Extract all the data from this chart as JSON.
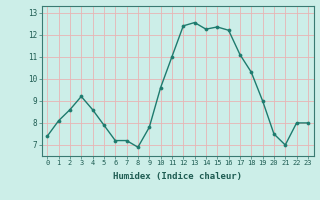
{
  "x": [
    0,
    1,
    2,
    3,
    4,
    5,
    6,
    7,
    8,
    9,
    10,
    11,
    12,
    13,
    14,
    15,
    16,
    17,
    18,
    19,
    20,
    21,
    22,
    23
  ],
  "y": [
    7.4,
    8.1,
    8.6,
    9.2,
    8.6,
    7.9,
    7.2,
    7.2,
    6.9,
    7.8,
    9.6,
    11.0,
    12.4,
    12.55,
    12.25,
    12.35,
    12.2,
    11.1,
    10.3,
    9.0,
    7.5,
    7.0,
    8.0,
    8.0
  ],
  "xlabel": "Humidex (Indice chaleur)",
  "xlim": [
    -0.5,
    23.5
  ],
  "ylim": [
    6.5,
    13.3
  ],
  "yticks": [
    7,
    8,
    9,
    10,
    11,
    12,
    13
  ],
  "xticks": [
    0,
    1,
    2,
    3,
    4,
    5,
    6,
    7,
    8,
    9,
    10,
    11,
    12,
    13,
    14,
    15,
    16,
    17,
    18,
    19,
    20,
    21,
    22,
    23
  ],
  "xtick_labels": [
    "0",
    "1",
    "2",
    "3",
    "4",
    "5",
    "6",
    "7",
    "8",
    "9",
    "10",
    "11",
    "12",
    "13",
    "14",
    "15",
    "16",
    "17",
    "18",
    "19",
    "20",
    "21",
    "22",
    "23"
  ],
  "line_color": "#1e7b6e",
  "bg_color": "#cceee8",
  "grid_color": "#e8b4b4",
  "axes_color": "#3a7a72",
  "tick_label_color": "#1e5c52"
}
